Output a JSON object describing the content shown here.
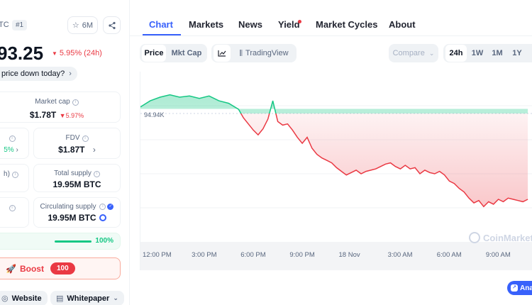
{
  "coin": {
    "symbol_fragment": "TC",
    "rank": "#1",
    "watch_count": "6M",
    "price_fragment": "93.25",
    "change_24h": "5.95% (24h)",
    "why_prompt": "price down today?"
  },
  "stats": {
    "market_cap_label": "Market cap",
    "market_cap_value": "$1.78T",
    "market_cap_change": "5.97%",
    "volume_change_fragment": "5%",
    "fdv_label": "FDV",
    "fdv_value": "$1.87T",
    "volume_label_fragment": "h)",
    "total_supply_label": "Total supply",
    "total_supply_value": "19.95M BTC",
    "circulating_label": "Circulating supply",
    "circulating_value": "19.95M BTC",
    "progress_pct": "100%",
    "progress_fraction": 1.0
  },
  "boost": {
    "label": "Boost",
    "count": "100"
  },
  "links": {
    "website": "Website",
    "whitepaper": "Whitepaper"
  },
  "tabs": [
    "Chart",
    "Markets",
    "News",
    "Yield",
    "Market Cycles",
    "About"
  ],
  "toolbar": {
    "price": "Price",
    "mkt_cap": "Mkt Cap",
    "tradingview": "TradingView",
    "compare": "Compare",
    "ranges": [
      "24h",
      "1W",
      "1M",
      "1Y"
    ]
  },
  "chart_data": {
    "type": "line",
    "open_label": "94.94K",
    "x_ticks": [
      "12:00 PM",
      "3:00 PM",
      "6:00 PM",
      "9:00 PM",
      "18 Nov",
      "3:00 AM",
      "6:00 AM",
      "9:00 AM"
    ],
    "x": [
      0,
      0.6,
      1.2,
      1.8,
      2.4,
      3.0,
      3.6,
      4.2,
      4.8,
      5.4,
      6.0,
      6.3,
      6.6,
      6.9,
      7.2,
      7.5,
      7.8,
      8.1,
      8.4,
      8.7,
      9.0,
      9.3,
      9.6,
      9.9,
      10.2,
      10.5,
      10.8,
      11.1,
      11.4,
      11.7,
      12.0,
      12.3,
      12.6,
      12.9,
      13.2,
      13.5,
      13.8,
      14.1,
      14.4,
      14.7,
      15.0,
      15.3,
      15.6,
      15.9,
      16.2,
      16.5,
      16.8,
      17.1,
      17.4,
      17.7,
      18.0,
      18.3,
      18.6,
      18.9,
      19.2,
      19.5,
      19.8,
      20.1,
      20.4,
      20.7,
      21.0,
      21.3,
      21.6,
      21.9,
      22.2,
      22.5,
      22.8,
      23.1,
      23.4,
      23.7
    ],
    "y": [
      95.1,
      95.6,
      95.9,
      96.1,
      95.9,
      96.0,
      95.8,
      96.0,
      95.6,
      95.4,
      94.9,
      94.2,
      93.7,
      93.2,
      92.8,
      93.3,
      94.1,
      95.6,
      93.9,
      93.6,
      93.7,
      93.2,
      92.6,
      92.1,
      92.6,
      91.7,
      91.2,
      90.9,
      90.7,
      90.5,
      90.1,
      89.8,
      89.5,
      89.7,
      89.9,
      89.6,
      89.8,
      89.9,
      90.0,
      90.2,
      90.4,
      90.5,
      90.2,
      90.0,
      90.3,
      90.0,
      90.1,
      89.6,
      89.9,
      89.7,
      89.6,
      89.8,
      89.5,
      89.0,
      88.8,
      88.4,
      88.1,
      87.6,
      87.2,
      87.4,
      86.9,
      87.3,
      87.1,
      87.5,
      87.3,
      87.6,
      87.5,
      87.4,
      87.3,
      87.5
    ],
    "baseline": 94.94
  },
  "watermark": "CoinMarket",
  "analytics_badge": "Ana"
}
